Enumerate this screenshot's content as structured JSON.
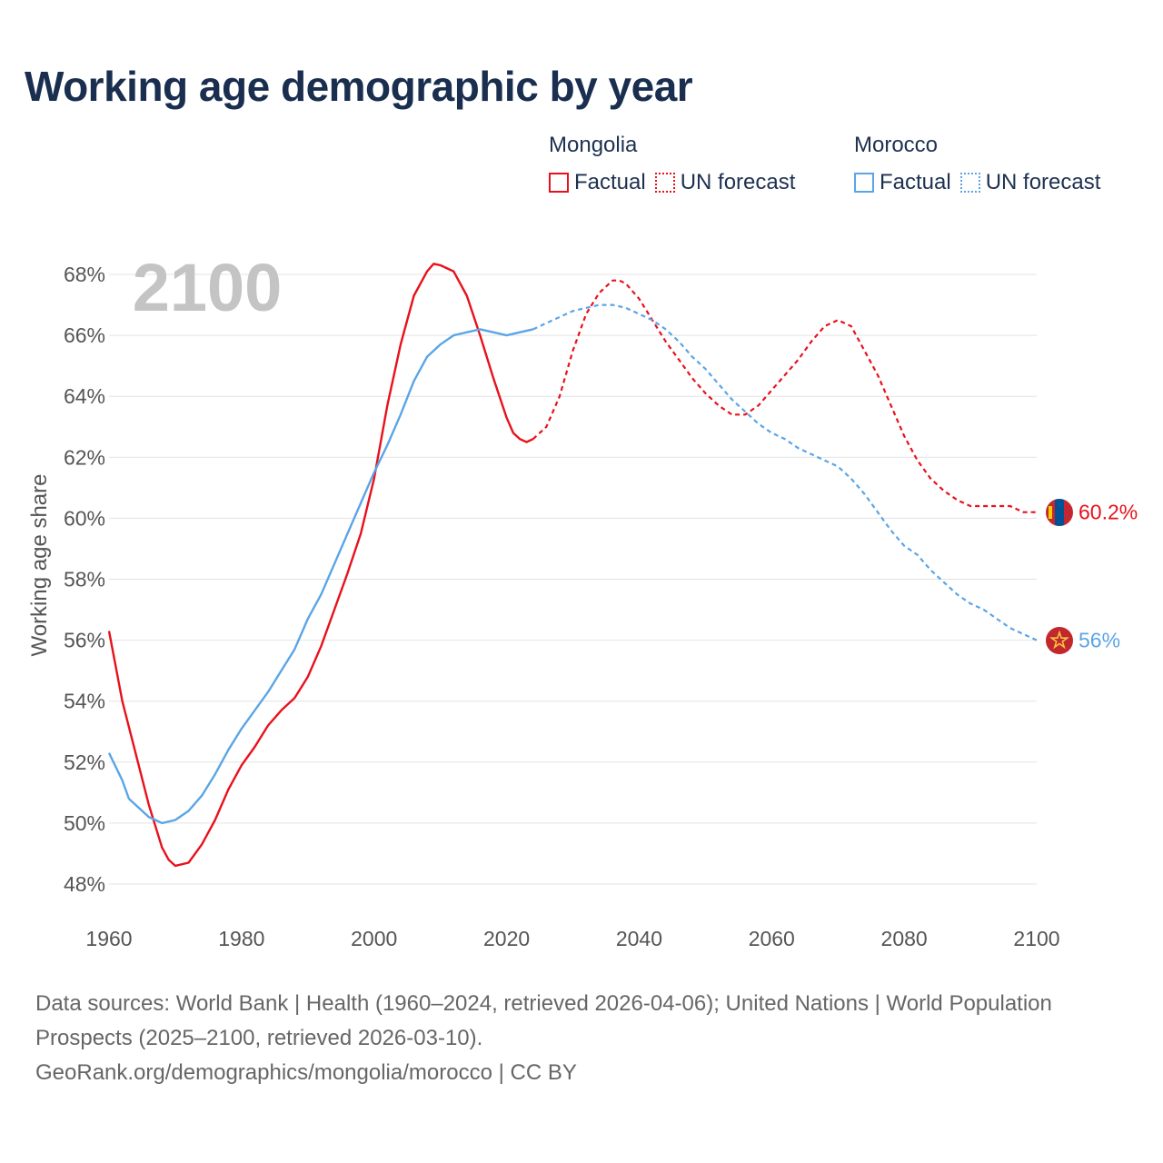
{
  "title": "Working age demographic by year",
  "legend": [
    {
      "country": "Mongolia",
      "factual_label": "Factual",
      "forecast_label": "UN forecast",
      "color": "#e8111b"
    },
    {
      "country": "Morocco",
      "factual_label": "Factual",
      "forecast_label": "UN forecast",
      "color": "#5aa5e6"
    }
  ],
  "year_badge": "2100",
  "footer": {
    "sources": "Data sources: World Bank | Health (1960–2024, retrieved 2026-04-06); United Nations | World Population Prospects (2025–2100, retrieved 2026-03-10).",
    "link": "GeoRank.org/demographics/mongolia/morocco | CC BY"
  },
  "chart_data": {
    "type": "line",
    "title": "Working age demographic by year",
    "xlabel": "",
    "ylabel": "Working age share",
    "xlim": [
      1960,
      2100
    ],
    "ylim": [
      47.5,
      68.6
    ],
    "x_ticks": [
      1960,
      1980,
      2000,
      2020,
      2040,
      2060,
      2080,
      2100
    ],
    "x_tick_labels": [
      "1960",
      "1980",
      "2000",
      "2020",
      "2040",
      "2060",
      "2080",
      "2100"
    ],
    "y_ticks": [
      48,
      50,
      52,
      54,
      56,
      58,
      60,
      62,
      64,
      66,
      68
    ],
    "y_tick_labels": [
      "48%",
      "50%",
      "52%",
      "54%",
      "56%",
      "58%",
      "60%",
      "62%",
      "64%",
      "66%",
      "68%"
    ],
    "forecast_start": 2024,
    "series": [
      {
        "name": "Mongolia",
        "color": "#e8111b",
        "end_label": "60.2%",
        "factual": [
          [
            1960,
            56.3
          ],
          [
            1962,
            54.0
          ],
          [
            1964,
            52.3
          ],
          [
            1966,
            50.6
          ],
          [
            1968,
            49.2
          ],
          [
            1969,
            48.8
          ],
          [
            1970,
            48.6
          ],
          [
            1972,
            48.7
          ],
          [
            1974,
            49.3
          ],
          [
            1976,
            50.1
          ],
          [
            1978,
            51.1
          ],
          [
            1980,
            51.9
          ],
          [
            1982,
            52.5
          ],
          [
            1984,
            53.2
          ],
          [
            1986,
            53.7
          ],
          [
            1988,
            54.1
          ],
          [
            1990,
            54.8
          ],
          [
            1992,
            55.8
          ],
          [
            1994,
            57.0
          ],
          [
            1996,
            58.2
          ],
          [
            1998,
            59.5
          ],
          [
            2000,
            61.3
          ],
          [
            2002,
            63.7
          ],
          [
            2004,
            65.7
          ],
          [
            2006,
            67.3
          ],
          [
            2008,
            68.1
          ],
          [
            2009,
            68.35
          ],
          [
            2010,
            68.3
          ],
          [
            2012,
            68.1
          ],
          [
            2014,
            67.3
          ],
          [
            2016,
            66.0
          ],
          [
            2018,
            64.6
          ],
          [
            2020,
            63.3
          ],
          [
            2021,
            62.8
          ],
          [
            2022,
            62.6
          ],
          [
            2023,
            62.5
          ],
          [
            2024,
            62.6
          ]
        ],
        "forecast": [
          [
            2024,
            62.6
          ],
          [
            2026,
            63.0
          ],
          [
            2028,
            64.0
          ],
          [
            2030,
            65.5
          ],
          [
            2032,
            66.7
          ],
          [
            2034,
            67.4
          ],
          [
            2036,
            67.8
          ],
          [
            2037,
            67.8
          ],
          [
            2038,
            67.7
          ],
          [
            2040,
            67.2
          ],
          [
            2042,
            66.5
          ],
          [
            2044,
            65.8
          ],
          [
            2046,
            65.2
          ],
          [
            2048,
            64.6
          ],
          [
            2050,
            64.1
          ],
          [
            2052,
            63.7
          ],
          [
            2054,
            63.4
          ],
          [
            2056,
            63.4
          ],
          [
            2058,
            63.7
          ],
          [
            2060,
            64.2
          ],
          [
            2062,
            64.7
          ],
          [
            2064,
            65.2
          ],
          [
            2066,
            65.8
          ],
          [
            2068,
            66.3
          ],
          [
            2070,
            66.5
          ],
          [
            2072,
            66.3
          ],
          [
            2074,
            65.5
          ],
          [
            2076,
            64.7
          ],
          [
            2078,
            63.7
          ],
          [
            2080,
            62.7
          ],
          [
            2082,
            61.9
          ],
          [
            2084,
            61.3
          ],
          [
            2086,
            60.9
          ],
          [
            2088,
            60.6
          ],
          [
            2090,
            60.4
          ],
          [
            2092,
            60.4
          ],
          [
            2094,
            60.4
          ],
          [
            2096,
            60.4
          ],
          [
            2098,
            60.2
          ],
          [
            2100,
            60.2
          ]
        ]
      },
      {
        "name": "Morocco",
        "color": "#5aa5e6",
        "end_label": "56%",
        "factual": [
          [
            1960,
            52.3
          ],
          [
            1962,
            51.4
          ],
          [
            1963,
            50.8
          ],
          [
            1965,
            50.4
          ],
          [
            1966,
            50.2
          ],
          [
            1967,
            50.1
          ],
          [
            1968,
            50.0
          ],
          [
            1970,
            50.1
          ],
          [
            1972,
            50.4
          ],
          [
            1974,
            50.9
          ],
          [
            1976,
            51.6
          ],
          [
            1978,
            52.4
          ],
          [
            1980,
            53.1
          ],
          [
            1982,
            53.7
          ],
          [
            1984,
            54.3
          ],
          [
            1986,
            55.0
          ],
          [
            1988,
            55.7
          ],
          [
            1990,
            56.7
          ],
          [
            1992,
            57.5
          ],
          [
            1994,
            58.5
          ],
          [
            1996,
            59.5
          ],
          [
            1998,
            60.5
          ],
          [
            2000,
            61.5
          ],
          [
            2002,
            62.4
          ],
          [
            2004,
            63.4
          ],
          [
            2006,
            64.5
          ],
          [
            2008,
            65.3
          ],
          [
            2010,
            65.7
          ],
          [
            2012,
            66.0
          ],
          [
            2014,
            66.1
          ],
          [
            2016,
            66.2
          ],
          [
            2018,
            66.1
          ],
          [
            2020,
            66.0
          ],
          [
            2022,
            66.1
          ],
          [
            2024,
            66.2
          ]
        ],
        "forecast": [
          [
            2024,
            66.2
          ],
          [
            2026,
            66.4
          ],
          [
            2028,
            66.6
          ],
          [
            2030,
            66.8
          ],
          [
            2032,
            66.9
          ],
          [
            2034,
            67.0
          ],
          [
            2036,
            67.0
          ],
          [
            2038,
            66.9
          ],
          [
            2040,
            66.7
          ],
          [
            2042,
            66.5
          ],
          [
            2044,
            66.2
          ],
          [
            2046,
            65.8
          ],
          [
            2048,
            65.3
          ],
          [
            2050,
            64.9
          ],
          [
            2052,
            64.4
          ],
          [
            2054,
            63.9
          ],
          [
            2056,
            63.5
          ],
          [
            2058,
            63.1
          ],
          [
            2060,
            62.8
          ],
          [
            2062,
            62.6
          ],
          [
            2064,
            62.3
          ],
          [
            2066,
            62.1
          ],
          [
            2068,
            61.9
          ],
          [
            2070,
            61.7
          ],
          [
            2072,
            61.3
          ],
          [
            2074,
            60.8
          ],
          [
            2076,
            60.2
          ],
          [
            2078,
            59.6
          ],
          [
            2080,
            59.1
          ],
          [
            2082,
            58.8
          ],
          [
            2084,
            58.3
          ],
          [
            2086,
            57.9
          ],
          [
            2088,
            57.5
          ],
          [
            2090,
            57.2
          ],
          [
            2092,
            57.0
          ],
          [
            2094,
            56.7
          ],
          [
            2096,
            56.4
          ],
          [
            2098,
            56.2
          ],
          [
            2100,
            56.0
          ]
        ]
      }
    ]
  }
}
